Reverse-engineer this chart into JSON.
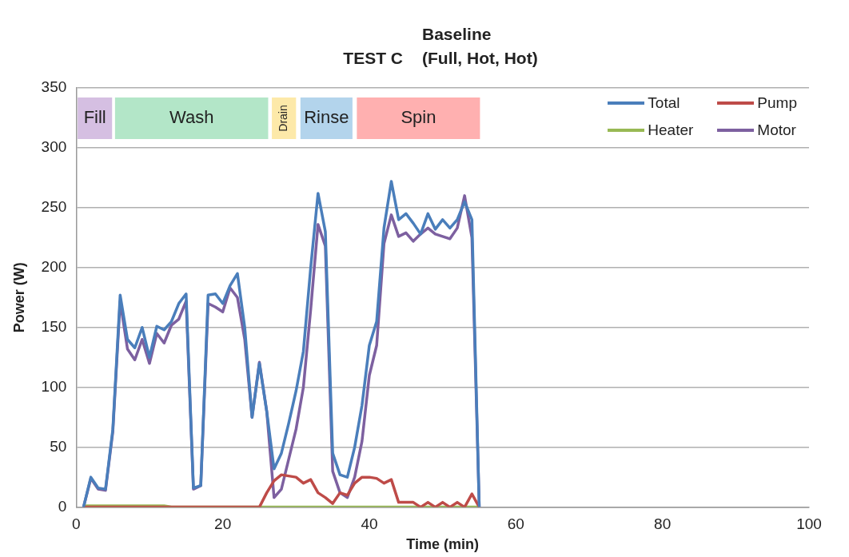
{
  "chart_data": {
    "type": "line",
    "title": "TEST C",
    "subtitle": "Baseline\n(Full, Hot, Hot)",
    "xlabel": "Time (min)",
    "ylabel": "Power (W)",
    "x": [
      1,
      2,
      3,
      4,
      5,
      6,
      7,
      8,
      9,
      10,
      11,
      12,
      13,
      14,
      15,
      16,
      17,
      18,
      19,
      20,
      21,
      22,
      23,
      24,
      25,
      26,
      27,
      28,
      29,
      30,
      31,
      32,
      33,
      34,
      35,
      36,
      37,
      38,
      39,
      40,
      41,
      42,
      43,
      44,
      45,
      46,
      47,
      48,
      49,
      50,
      51,
      52,
      53,
      54,
      55
    ],
    "series": [
      {
        "name": "Total",
        "color": "#4a7ebb",
        "values": [
          0,
          25,
          16,
          15,
          65,
          177,
          140,
          133,
          150,
          125,
          151,
          148,
          155,
          170,
          178,
          16,
          18,
          177,
          178,
          170,
          185,
          195,
          150,
          75,
          120,
          80,
          32,
          45,
          70,
          97,
          130,
          200,
          262,
          230,
          45,
          27,
          25,
          50,
          85,
          135,
          155,
          233,
          272,
          240,
          245,
          237,
          228,
          245,
          232,
          240,
          233,
          240,
          255,
          240,
          0
        ]
      },
      {
        "name": "Pump",
        "color": "#be4b48",
        "values": [
          0,
          0,
          0,
          0,
          0,
          0,
          0,
          0,
          0,
          0,
          0,
          0,
          0,
          0,
          0,
          0,
          0,
          0,
          0,
          0,
          0,
          0,
          0,
          0,
          0,
          12,
          22,
          27,
          26,
          25,
          20,
          23,
          12,
          8,
          3,
          12,
          10,
          20,
          25,
          25,
          24,
          20,
          23,
          4,
          4,
          4,
          0,
          4,
          0,
          4,
          0,
          4,
          0,
          11,
          0
        ]
      },
      {
        "name": "Heater",
        "color": "#98b954",
        "values": [
          1,
          1,
          1,
          1,
          1,
          1,
          1,
          1,
          1,
          1,
          1,
          1,
          0,
          0,
          0,
          0,
          0,
          0,
          0,
          0,
          0,
          0,
          0,
          0,
          0,
          0,
          0,
          0,
          0,
          0,
          0,
          0,
          0,
          0,
          0,
          0,
          0,
          0,
          0,
          0,
          0,
          0,
          0,
          0,
          0,
          0,
          0,
          0,
          0,
          0,
          0,
          0,
          0,
          0,
          0
        ]
      },
      {
        "name": "Motor",
        "color": "#7d60a0",
        "values": [
          0,
          24,
          15,
          14,
          63,
          172,
          132,
          123,
          140,
          120,
          145,
          137,
          152,
          157,
          172,
          15,
          18,
          170,
          167,
          163,
          183,
          175,
          140,
          75,
          121,
          80,
          8,
          15,
          40,
          65,
          100,
          165,
          236,
          218,
          30,
          12,
          8,
          25,
          55,
          110,
          135,
          220,
          244,
          226,
          229,
          222,
          228,
          233,
          228,
          226,
          224,
          233,
          260,
          225,
          0
        ]
      }
    ],
    "bands": [
      {
        "axis": "x",
        "from": 0.2,
        "to": 4.9,
        "label": "Fill",
        "color": "#d5bfe2"
      },
      {
        "axis": "x",
        "from": 5.3,
        "to": 26.2,
        "label": "Wash",
        "color": "#b3e6c8"
      },
      {
        "axis": "x",
        "from": 26.7,
        "to": 30,
        "label": "Drain",
        "color": "#fde9a9"
      },
      {
        "axis": "x",
        "from": 30.6,
        "to": 37.7,
        "label": "Rinse",
        "color": "#b3d4ec"
      },
      {
        "axis": "x",
        "from": 38.3,
        "to": 55.1,
        "label": "Spin",
        "color": "#ffb0b0"
      }
    ],
    "xlim": [
      0,
      100
    ],
    "xticks": [
      0,
      20,
      40,
      60,
      80,
      100
    ],
    "ylim": [
      0,
      350
    ],
    "yticks": [
      0,
      50,
      100,
      150,
      200,
      250,
      300,
      350
    ],
    "grid": "y",
    "legend": "top right",
    "marker": "none",
    "line_style": "solid"
  }
}
